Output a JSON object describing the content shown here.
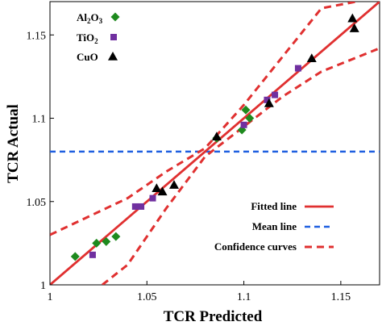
{
  "chart_data": {
    "type": "scatter",
    "xlabel": "TCR Predicted",
    "ylabel": "TCR Actual",
    "xlim": [
      1.0,
      1.17
    ],
    "ylim": [
      1.0,
      1.17
    ],
    "x_ticks": [
      1.0,
      1.05,
      1.1,
      1.15
    ],
    "x_tick_labels": [
      "1",
      "1.05",
      "1.1",
      "1.15"
    ],
    "y_ticks": [
      1.0,
      1.05,
      1.1,
      1.15
    ],
    "y_tick_labels": [
      "1",
      "1.05",
      "1.1",
      "1.15"
    ],
    "grid": false,
    "series": [
      {
        "name": "Al₂O₃",
        "label_parts": [
          "Al",
          "2",
          "O",
          "3"
        ],
        "marker": "diamond",
        "color": "#1e8a1e",
        "points": [
          {
            "x": 1.013,
            "y": 1.017
          },
          {
            "x": 1.024,
            "y": 1.025
          },
          {
            "x": 1.029,
            "y": 1.026
          },
          {
            "x": 1.034,
            "y": 1.029
          },
          {
            "x": 1.086,
            "y": 1.088
          },
          {
            "x": 1.099,
            "y": 1.093
          },
          {
            "x": 1.101,
            "y": 1.105
          },
          {
            "x": 1.103,
            "y": 1.1
          }
        ]
      },
      {
        "name": "TiO₂",
        "label_parts": [
          "TiO",
          "2"
        ],
        "marker": "square",
        "color": "#7030a0",
        "points": [
          {
            "x": 1.022,
            "y": 1.018
          },
          {
            "x": 1.044,
            "y": 1.047
          },
          {
            "x": 1.047,
            "y": 1.047
          },
          {
            "x": 1.053,
            "y": 1.052
          },
          {
            "x": 1.1,
            "y": 1.096
          },
          {
            "x": 1.112,
            "y": 1.111
          },
          {
            "x": 1.116,
            "y": 1.114
          },
          {
            "x": 1.128,
            "y": 1.13
          }
        ]
      },
      {
        "name": "CuO",
        "label_parts": [
          "CuO"
        ],
        "marker": "triangle",
        "color": "#000000",
        "points": [
          {
            "x": 1.055,
            "y": 1.058
          },
          {
            "x": 1.058,
            "y": 1.056
          },
          {
            "x": 1.064,
            "y": 1.06
          },
          {
            "x": 1.086,
            "y": 1.089
          },
          {
            "x": 1.113,
            "y": 1.109
          },
          {
            "x": 1.135,
            "y": 1.136
          },
          {
            "x": 1.156,
            "y": 1.16
          },
          {
            "x": 1.157,
            "y": 1.154
          }
        ]
      }
    ],
    "lines": [
      {
        "name": "Fitted line",
        "style": "solid",
        "color": "#e03030",
        "x": [
          1.0,
          1.17
        ],
        "y": [
          1.0,
          1.17
        ]
      },
      {
        "name": "Mean line",
        "style": "dashed",
        "color": "#1f5fe0",
        "y_value": 1.08
      },
      {
        "name": "Confidence curves",
        "style": "dashed",
        "color": "#e03030",
        "upper": {
          "x": [
            1.0,
            1.04,
            1.06,
            1.08,
            1.1,
            1.12,
            1.14,
            1.158
          ],
          "y": [
            1.03,
            1.052,
            1.068,
            1.082,
            1.108,
            1.137,
            1.166,
            1.17
          ]
        },
        "lower": {
          "x": [
            1.027,
            1.04,
            1.06,
            1.08,
            1.1,
            1.12,
            1.14,
            1.17
          ],
          "y": [
            1.0,
            1.012,
            1.046,
            1.077,
            1.095,
            1.113,
            1.128,
            1.142
          ]
        }
      }
    ],
    "legend_placement": "top-left and bottom-right"
  }
}
